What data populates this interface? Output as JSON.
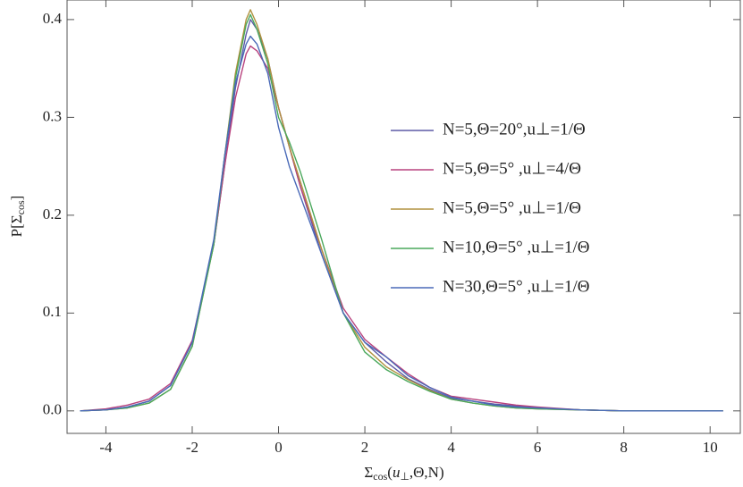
{
  "chart_data": {
    "type": "line",
    "ylabel_parts": [
      "P[Σ",
      "cos",
      "]"
    ],
    "xlabel_parts": [
      "Σ",
      "cos",
      "(",
      "u",
      "⊥",
      ",Θ,N)"
    ],
    "x": [
      -4.6,
      -4,
      -3.5,
      -3,
      -2.5,
      -2,
      -1.5,
      -1.25,
      -1,
      -0.75,
      -0.65,
      -0.5,
      -0.25,
      0,
      0.25,
      0.5,
      1,
      1.5,
      2,
      2.5,
      3,
      3.5,
      4,
      4.5,
      5,
      5.5,
      6,
      7,
      8,
      9,
      10.3
    ],
    "series": [
      {
        "name": "N=5,Θ=20°,u⊥=1/Θ",
        "color": "#5d5aa6",
        "values": [
          0,
          0.001,
          0.004,
          0.01,
          0.026,
          0.07,
          0.17,
          0.25,
          0.33,
          0.385,
          0.4,
          0.39,
          0.36,
          0.31,
          0.27,
          0.23,
          0.16,
          0.1,
          0.07,
          0.05,
          0.033,
          0.022,
          0.013,
          0.01,
          0.007,
          0.005,
          0.003,
          0.001,
          0,
          0,
          0
        ]
      },
      {
        "name": "N=5,Θ=5° ,u⊥=4/Θ",
        "color": "#b8427e",
        "values": [
          0,
          0.002,
          0.006,
          0.012,
          0.028,
          0.072,
          0.17,
          0.25,
          0.32,
          0.365,
          0.373,
          0.368,
          0.35,
          0.31,
          0.27,
          0.23,
          0.165,
          0.105,
          0.073,
          0.055,
          0.038,
          0.024,
          0.015,
          0.012,
          0.009,
          0.006,
          0.004,
          0.001,
          0,
          0,
          0
        ]
      },
      {
        "name": "N=5,Θ=5° ,u⊥=1/Θ",
        "color": "#b0913e",
        "values": [
          0,
          0.001,
          0.003,
          0.008,
          0.022,
          0.066,
          0.17,
          0.26,
          0.345,
          0.4,
          0.41,
          0.395,
          0.36,
          0.31,
          0.27,
          0.235,
          0.165,
          0.1,
          0.065,
          0.045,
          0.032,
          0.021,
          0.012,
          0.008,
          0.005,
          0.003,
          0.002,
          0.001,
          0,
          0,
          0
        ]
      },
      {
        "name": "N=10,Θ=5° ,u⊥=1/Θ",
        "color": "#4aa85c",
        "values": [
          0,
          0.001,
          0.003,
          0.008,
          0.022,
          0.066,
          0.17,
          0.26,
          0.34,
          0.395,
          0.405,
          0.39,
          0.355,
          0.3,
          0.275,
          0.245,
          0.175,
          0.1,
          0.06,
          0.042,
          0.03,
          0.02,
          0.012,
          0.008,
          0.005,
          0.003,
          0.002,
          0.001,
          0,
          0,
          0
        ]
      },
      {
        "name": "N=30,Θ=5° ,u⊥=1/Θ",
        "color": "#4a6ab8",
        "values": [
          0,
          0.001,
          0.004,
          0.01,
          0.026,
          0.07,
          0.175,
          0.26,
          0.335,
          0.375,
          0.383,
          0.375,
          0.345,
          0.29,
          0.25,
          0.22,
          0.16,
          0.1,
          0.07,
          0.055,
          0.036,
          0.024,
          0.014,
          0.01,
          0.006,
          0.004,
          0.003,
          0.001,
          0,
          0,
          0
        ]
      }
    ],
    "xlim": [
      -4.9,
      10.7
    ],
    "ylim": [
      -0.023,
      0.42
    ],
    "xticks": [
      -4,
      -2,
      0,
      2,
      4,
      6,
      8,
      10
    ],
    "yticks": [
      {
        "value": 0,
        "label": "0.0"
      },
      {
        "value": 0.1,
        "label": "0.1"
      },
      {
        "value": 0.2,
        "label": "0.2"
      },
      {
        "value": 0.3,
        "label": "0.3"
      },
      {
        "value": 0.4,
        "label": "0.4"
      }
    ],
    "grid": false
  }
}
